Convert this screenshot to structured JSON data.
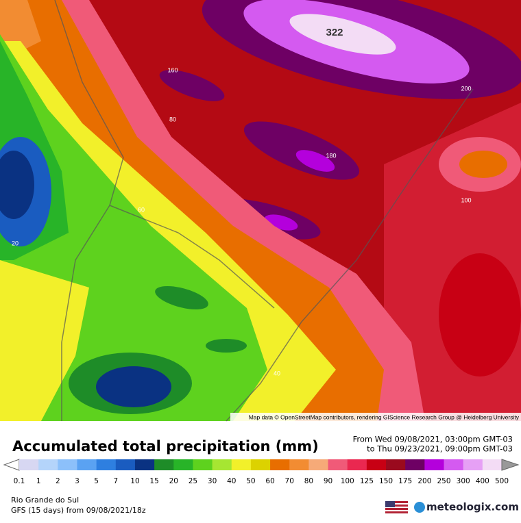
{
  "map": {
    "contour_labels": [
      "322",
      "200",
      "160",
      "80",
      "180",
      "100",
      "60",
      "20",
      "40"
    ],
    "attribution": "Map data © OpenStreetMap contributors, rendering GIScience Research Group @ Heidelberg University"
  },
  "legend": {
    "title": "Accumulated total precipitation (mm)",
    "labels": [
      "0.1",
      "1",
      "2",
      "3",
      "5",
      "7",
      "10",
      "15",
      "20",
      "25",
      "30",
      "40",
      "50",
      "60",
      "70",
      "80",
      "90",
      "100",
      "125",
      "150",
      "175",
      "200",
      "250",
      "300",
      "400",
      "500"
    ],
    "colors": [
      "#d7d7f2",
      "#b4d4fa",
      "#8cc0fa",
      "#5aa2f2",
      "#2e7fe0",
      "#1a5cc0",
      "#0a3282",
      "#1e8c28",
      "#28b428",
      "#5ed21e",
      "#a6e632",
      "#f2f02a",
      "#dcd200",
      "#e86e00",
      "#f28c32",
      "#f6aa78",
      "#f05a78",
      "#ea2850",
      "#c80014",
      "#9a0a1e",
      "#6e0064",
      "#b400dc",
      "#d45af0",
      "#e6a0f5",
      "#f3dcf5"
    ]
  },
  "period": {
    "from": "From Wed 09/08/2021, 03:00pm GMT-03",
    "to": "to Thu 09/23/2021, 09:00pm GMT-03"
  },
  "footer": {
    "region": "Rio Grande do Sul",
    "model": "GFS (15 days) from 09/08/2021/18z",
    "logo": "meteologix.com"
  }
}
